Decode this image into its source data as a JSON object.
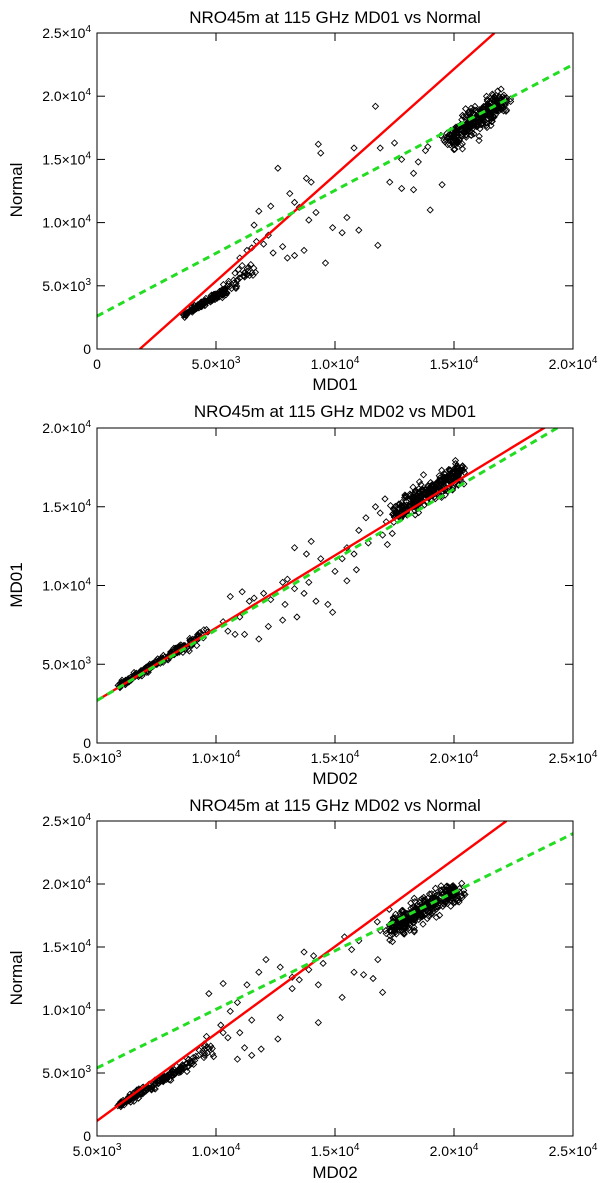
{
  "chart_data": [
    {
      "type": "scatter",
      "title": "NRO45m at 115 GHz MD01 vs Normal",
      "xlabel": "MD01",
      "ylabel": "Normal",
      "xlim": [
        0,
        20000
      ],
      "ylim": [
        0,
        25000
      ],
      "x_ticks": [
        {
          "value": 0,
          "label": "0",
          "exp": ""
        },
        {
          "value": 5000,
          "label": "5.0×10",
          "exp": "3"
        },
        {
          "value": 10000,
          "label": "1.0×10",
          "exp": "4"
        },
        {
          "value": 15000,
          "label": "1.5×10",
          "exp": "4"
        },
        {
          "value": 20000,
          "label": "2.0×10",
          "exp": "4"
        }
      ],
      "y_ticks": [
        {
          "value": 0,
          "label": "0",
          "exp": ""
        },
        {
          "value": 5000,
          "label": "5.0×10",
          "exp": "3"
        },
        {
          "value": 10000,
          "label": "1.0×10",
          "exp": "4"
        },
        {
          "value": 15000,
          "label": "1.5×10",
          "exp": "4"
        },
        {
          "value": 20000,
          "label": "2.0×10",
          "exp": "4"
        },
        {
          "value": 25000,
          "label": "2.5×10",
          "exp": "4"
        }
      ],
      "clusters": [
        {
          "x0": 3600,
          "y0": 2700,
          "x1": 5400,
          "y1": 4600,
          "n": 140,
          "spread": 120
        },
        {
          "x0": 5400,
          "y0": 4600,
          "x1": 6600,
          "y1": 6400,
          "n": 40,
          "spread": 220
        },
        {
          "x0": 14800,
          "y0": 16400,
          "x1": 17000,
          "y1": 19700,
          "n": 320,
          "spread": 420
        }
      ],
      "points": [
        [
          7600,
          14300
        ],
        [
          9300,
          16200
        ],
        [
          9400,
          15500
        ],
        [
          9600,
          6800
        ],
        [
          9900,
          9600
        ],
        [
          10300,
          9200
        ],
        [
          10800,
          15900
        ],
        [
          11000,
          9400
        ],
        [
          11800,
          8200
        ],
        [
          11900,
          15900
        ],
        [
          11700,
          19200
        ],
        [
          12300,
          13200
        ],
        [
          12500,
          16300
        ],
        [
          12800,
          12700
        ],
        [
          13300,
          12600
        ],
        [
          13300,
          13900
        ],
        [
          13800,
          15700
        ],
        [
          14000,
          11000
        ],
        [
          14500,
          13000
        ],
        [
          13900,
          16000
        ],
        [
          8100,
          12300
        ],
        [
          8300,
          11600
        ],
        [
          8500,
          11200
        ],
        [
          7300,
          11300
        ],
        [
          7800,
          8100
        ],
        [
          8000,
          7200
        ],
        [
          8300,
          7400
        ],
        [
          8700,
          7800
        ],
        [
          8800,
          13500
        ],
        [
          9000,
          13200
        ],
        [
          7000,
          8300
        ],
        [
          7200,
          9000
        ],
        [
          6800,
          10900
        ],
        [
          6600,
          9800
        ],
        [
          6700,
          8500
        ],
        [
          7400,
          7600
        ],
        [
          10500,
          10400
        ],
        [
          8900,
          10200
        ],
        [
          9200,
          10800
        ],
        [
          6500,
          8000
        ],
        [
          6000,
          7200
        ],
        [
          6300,
          7800
        ],
        [
          6100,
          6600
        ],
        [
          5800,
          6000
        ],
        [
          12800,
          15000
        ],
        [
          13500,
          14800
        ]
      ],
      "fits": [
        {
          "style": "solid",
          "color": "#ff0000",
          "x": [
            1800,
            16700
          ],
          "y": [
            0,
            25000
          ]
        },
        {
          "style": "dashed",
          "color": "#22dd22",
          "x": [
            0,
            20000
          ],
          "y": [
            2600,
            22500
          ]
        }
      ]
    },
    {
      "type": "scatter",
      "title": "NRO45m at 115 GHz MD02 vs MD01",
      "xlabel": "MD02",
      "ylabel": "MD01",
      "xlim": [
        5000,
        25000
      ],
      "ylim": [
        0,
        20000
      ],
      "x_ticks": [
        {
          "value": 5000,
          "label": "5.0×10",
          "exp": "3"
        },
        {
          "value": 10000,
          "label": "1.0×10",
          "exp": "4"
        },
        {
          "value": 15000,
          "label": "1.5×10",
          "exp": "4"
        },
        {
          "value": 20000,
          "label": "2.0×10",
          "exp": "4"
        },
        {
          "value": 25000,
          "label": "2.5×10",
          "exp": "4"
        }
      ],
      "y_ticks": [
        {
          "value": 0,
          "label": "0",
          "exp": ""
        },
        {
          "value": 5000,
          "label": "5.0×10",
          "exp": "3"
        },
        {
          "value": 10000,
          "label": "1.0×10",
          "exp": "4"
        },
        {
          "value": 15000,
          "label": "1.5×10",
          "exp": "4"
        },
        {
          "value": 20000,
          "label": "2.0×10",
          "exp": "4"
        }
      ],
      "clusters": [
        {
          "x0": 5900,
          "y0": 3600,
          "x1": 8700,
          "y1": 6200,
          "n": 170,
          "spread": 100
        },
        {
          "x0": 8700,
          "y0": 6100,
          "x1": 9600,
          "y1": 7000,
          "n": 30,
          "spread": 200
        },
        {
          "x0": 17500,
          "y0": 14500,
          "x1": 20300,
          "y1": 17300,
          "n": 320,
          "spread": 330
        }
      ],
      "points": [
        [
          12800,
          10200
        ],
        [
          13000,
          10400
        ],
        [
          13900,
          10200
        ],
        [
          13300,
          9800
        ],
        [
          14200,
          9000
        ],
        [
          14700,
          8800
        ],
        [
          14900,
          8300
        ],
        [
          14000,
          12800
        ],
        [
          13300,
          12400
        ],
        [
          15900,
          11000
        ],
        [
          16700,
          15000
        ],
        [
          16900,
          14600
        ],
        [
          17100,
          15500
        ],
        [
          12800,
          7800
        ],
        [
          12900,
          8800
        ],
        [
          13400,
          8000
        ],
        [
          13700,
          9500
        ],
        [
          11000,
          8000
        ],
        [
          11400,
          9000
        ],
        [
          11100,
          9600
        ],
        [
          11600,
          9200
        ],
        [
          12000,
          9500
        ],
        [
          12300,
          9100
        ],
        [
          10600,
          9300
        ],
        [
          10300,
          7700
        ],
        [
          9600,
          7200
        ],
        [
          10500,
          7100
        ],
        [
          11800,
          6600
        ],
        [
          11200,
          6900
        ],
        [
          10800,
          6900
        ],
        [
          15500,
          12400
        ],
        [
          15800,
          12000
        ],
        [
          16400,
          12700
        ],
        [
          16000,
          13500
        ],
        [
          15300,
          11700
        ],
        [
          14400,
          11700
        ],
        [
          15000,
          10900
        ],
        [
          16300,
          14300
        ],
        [
          17200,
          12600
        ],
        [
          17000,
          13200
        ],
        [
          13800,
          12000
        ],
        [
          12200,
          7400
        ],
        [
          15500,
          10300
        ]
      ],
      "fits": [
        {
          "style": "solid",
          "color": "#ff0000",
          "x": [
            5000,
            24000
          ],
          "y": [
            2700,
            20200
          ]
        },
        {
          "style": "dashed",
          "color": "#22dd22",
          "x": [
            5000,
            25000
          ],
          "y": [
            2700,
            20600
          ]
        }
      ]
    },
    {
      "type": "scatter",
      "title": "NRO45m at 115 GHz MD02 vs Normal",
      "xlabel": "MD02",
      "ylabel": "Normal",
      "xlim": [
        5000,
        25000
      ],
      "ylim": [
        0,
        25000
      ],
      "x_ticks": [
        {
          "value": 5000,
          "label": "5.0×10",
          "exp": "3"
        },
        {
          "value": 10000,
          "label": "1.0×10",
          "exp": "4"
        },
        {
          "value": 15000,
          "label": "1.5×10",
          "exp": "4"
        },
        {
          "value": 20000,
          "label": "2.0×10",
          "exp": "4"
        },
        {
          "value": 25000,
          "label": "2.5×10",
          "exp": "4"
        }
      ],
      "y_ticks": [
        {
          "value": 0,
          "label": "0",
          "exp": ""
        },
        {
          "value": 5000,
          "label": "5.0×10",
          "exp": "3"
        },
        {
          "value": 10000,
          "label": "1.0×10",
          "exp": "4"
        },
        {
          "value": 15000,
          "label": "1.5×10",
          "exp": "4"
        },
        {
          "value": 20000,
          "label": "2.0×10",
          "exp": "4"
        },
        {
          "value": 25000,
          "label": "2.5×10",
          "exp": "4"
        }
      ],
      "clusters": [
        {
          "x0": 5900,
          "y0": 2400,
          "x1": 8600,
          "y1": 5400,
          "n": 180,
          "spread": 130
        },
        {
          "x0": 8600,
          "y0": 5400,
          "x1": 9700,
          "y1": 7000,
          "n": 35,
          "spread": 260
        },
        {
          "x0": 17300,
          "y0": 16300,
          "x1": 20200,
          "y1": 19700,
          "n": 340,
          "spread": 420
        }
      ],
      "points": [
        [
          9700,
          11300
        ],
        [
          10300,
          12100
        ],
        [
          10600,
          9900
        ],
        [
          11300,
          12000
        ],
        [
          11800,
          13000
        ],
        [
          12100,
          14000
        ],
        [
          12700,
          9400
        ],
        [
          12600,
          7700
        ],
        [
          13200,
          12600
        ],
        [
          13500,
          12400
        ],
        [
          13700,
          14600
        ],
        [
          14100,
          14300
        ],
        [
          14300,
          12000
        ],
        [
          14300,
          9000
        ],
        [
          14500,
          13700
        ],
        [
          15300,
          11000
        ],
        [
          15400,
          15800
        ],
        [
          15800,
          13000
        ],
        [
          16200,
          12800
        ],
        [
          16600,
          12500
        ],
        [
          16800,
          14000
        ],
        [
          17000,
          11400
        ],
        [
          16000,
          15500
        ],
        [
          15700,
          14800
        ],
        [
          10900,
          10600
        ],
        [
          10200,
          8800
        ],
        [
          10500,
          7800
        ],
        [
          11000,
          8200
        ],
        [
          11500,
          9200
        ],
        [
          11900,
          6900
        ],
        [
          11500,
          6400
        ],
        [
          11200,
          7000
        ],
        [
          10900,
          6100
        ],
        [
          10300,
          8200
        ],
        [
          9600,
          7900
        ],
        [
          9300,
          6800
        ],
        [
          9900,
          6300
        ],
        [
          12700,
          13400
        ],
        [
          13200,
          11700
        ],
        [
          13900,
          13200
        ]
      ],
      "fits": [
        {
          "style": "solid",
          "color": "#ff0000",
          "x": [
            5000,
            22200
          ],
          "y": [
            1200,
            25000
          ]
        },
        {
          "style": "dashed",
          "color": "#22dd22",
          "x": [
            5000,
            25000
          ],
          "y": [
            5400,
            24000
          ]
        }
      ]
    }
  ]
}
